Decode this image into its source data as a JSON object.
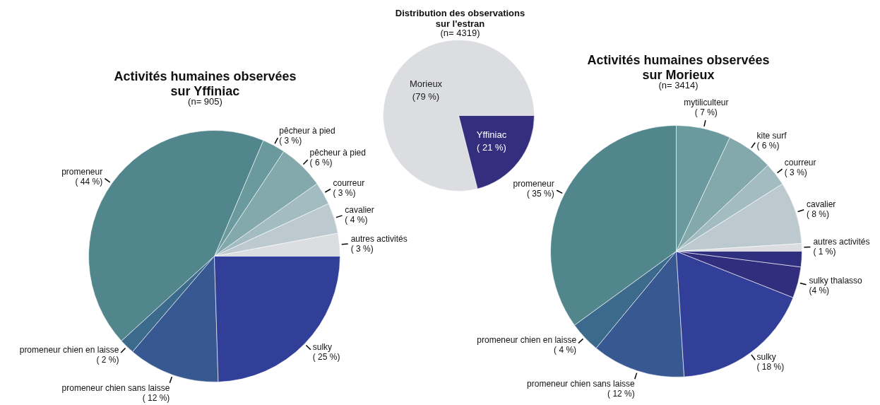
{
  "chart_data": [
    {
      "type": "pie",
      "title": "Activités humaines observées\nsur Yffiniac",
      "subtitle": "(n= 905)",
      "categories": [
        "autres activités",
        "cavalier",
        "courreur",
        "pêcheur à pied",
        "pêcheur à pied",
        "promeneur",
        "promeneur chien en laisse",
        "promeneur chien sans laisse",
        "sulky"
      ],
      "values": [
        3,
        4,
        3,
        6,
        3,
        44,
        2,
        12,
        25
      ],
      "value_labels": [
        "( 3 %)",
        "( 4 %)",
        "( 3 %)",
        "( 6 %)",
        "( 3 %)",
        "( 44 %)",
        "( 2 %)",
        "( 12 %)",
        "( 25 %)"
      ],
      "colors": [
        "#dcdde0",
        "#bccacf",
        "#a3bcc1",
        "#84a9ad",
        "#6a999e",
        "#52868d",
        "#3c6a8c",
        "#385892",
        "#323f98"
      ]
    },
    {
      "type": "pie",
      "title": "Distribution des observations\nsur l'estran",
      "subtitle": "(n= 4319)",
      "categories": [
        "Morieux",
        "Yffiniac"
      ],
      "values": [
        79,
        21
      ],
      "value_labels": [
        "(79 %)",
        "( 21 %)"
      ],
      "colors": [
        "#dcdde0",
        "#342e7e"
      ]
    },
    {
      "type": "pie",
      "title": "Activités humaines observées\nsur Morieux",
      "subtitle": "(n= 3414)",
      "categories": [
        "autres activités",
        "cavalier",
        "courreur",
        "kite surf",
        "mytiliculteur",
        "promeneur",
        "promeneur chien en laisse",
        "promeneur chien sans laisse",
        "sulky",
        "sulky thalasso",
        null
      ],
      "values": [
        1,
        8,
        3,
        6,
        7,
        35,
        4,
        12,
        18,
        4,
        2
      ],
      "value_labels": [
        "( 1 %)",
        "( 8 %)",
        "( 3 %)",
        "( 6 %)",
        "( 7 %)",
        "( 35 %)",
        "( 4 %)",
        "( 12 %)",
        "( 18 %)",
        "(4 %)",
        null
      ],
      "colors": [
        "#dcdde0",
        "#bccacf",
        "#a3bcc1",
        "#84a9ad",
        "#6a999e",
        "#52868d",
        "#3c6a8c",
        "#385892",
        "#323f98",
        "#322e7e",
        "#2f2f80"
      ]
    }
  ]
}
